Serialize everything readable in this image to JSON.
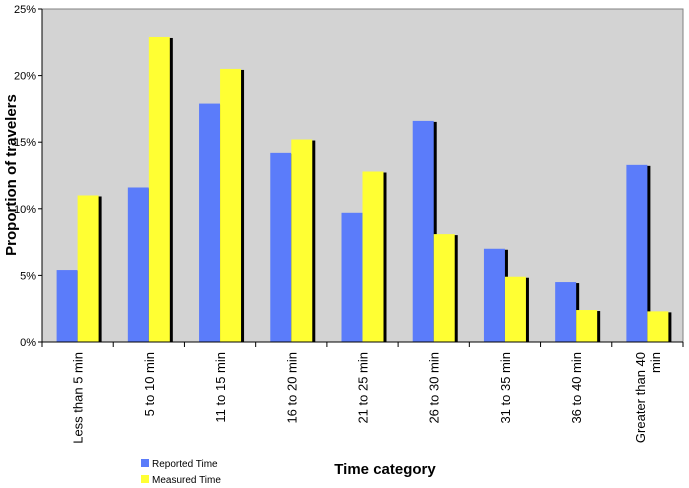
{
  "chart_data": {
    "type": "bar",
    "title": "",
    "xlabel": "Time category",
    "ylabel": "Proportion of travelers",
    "ylim": [
      0,
      25
    ],
    "yticks": [
      "0%",
      "5%",
      "10%",
      "15%",
      "20%",
      "25%"
    ],
    "grid": false,
    "legend_placement": "bottom-left",
    "categories": [
      [
        "Less than 5 min"
      ],
      [
        "5 to 10 min"
      ],
      [
        "11 to 15 min"
      ],
      [
        "16 to 20 min"
      ],
      [
        "21 to 25 min"
      ],
      [
        "26 to 30 min"
      ],
      [
        "31 to 35 min"
      ],
      [
        "36 to 40 min"
      ],
      [
        "Greater than 40",
        "min"
      ]
    ],
    "series": [
      {
        "name": "Reported Time",
        "color": "#5b7cfa",
        "values": [
          5.4,
          11.6,
          17.9,
          14.2,
          9.7,
          16.6,
          7.0,
          4.5,
          13.3
        ]
      },
      {
        "name": "Measured Time",
        "color": "#ffff33",
        "values": [
          11.0,
          22.9,
          20.5,
          15.2,
          12.8,
          8.1,
          4.9,
          2.4,
          2.3
        ]
      }
    ],
    "plot_background": "#d3d3d3",
    "shadow_color": "#000000"
  }
}
